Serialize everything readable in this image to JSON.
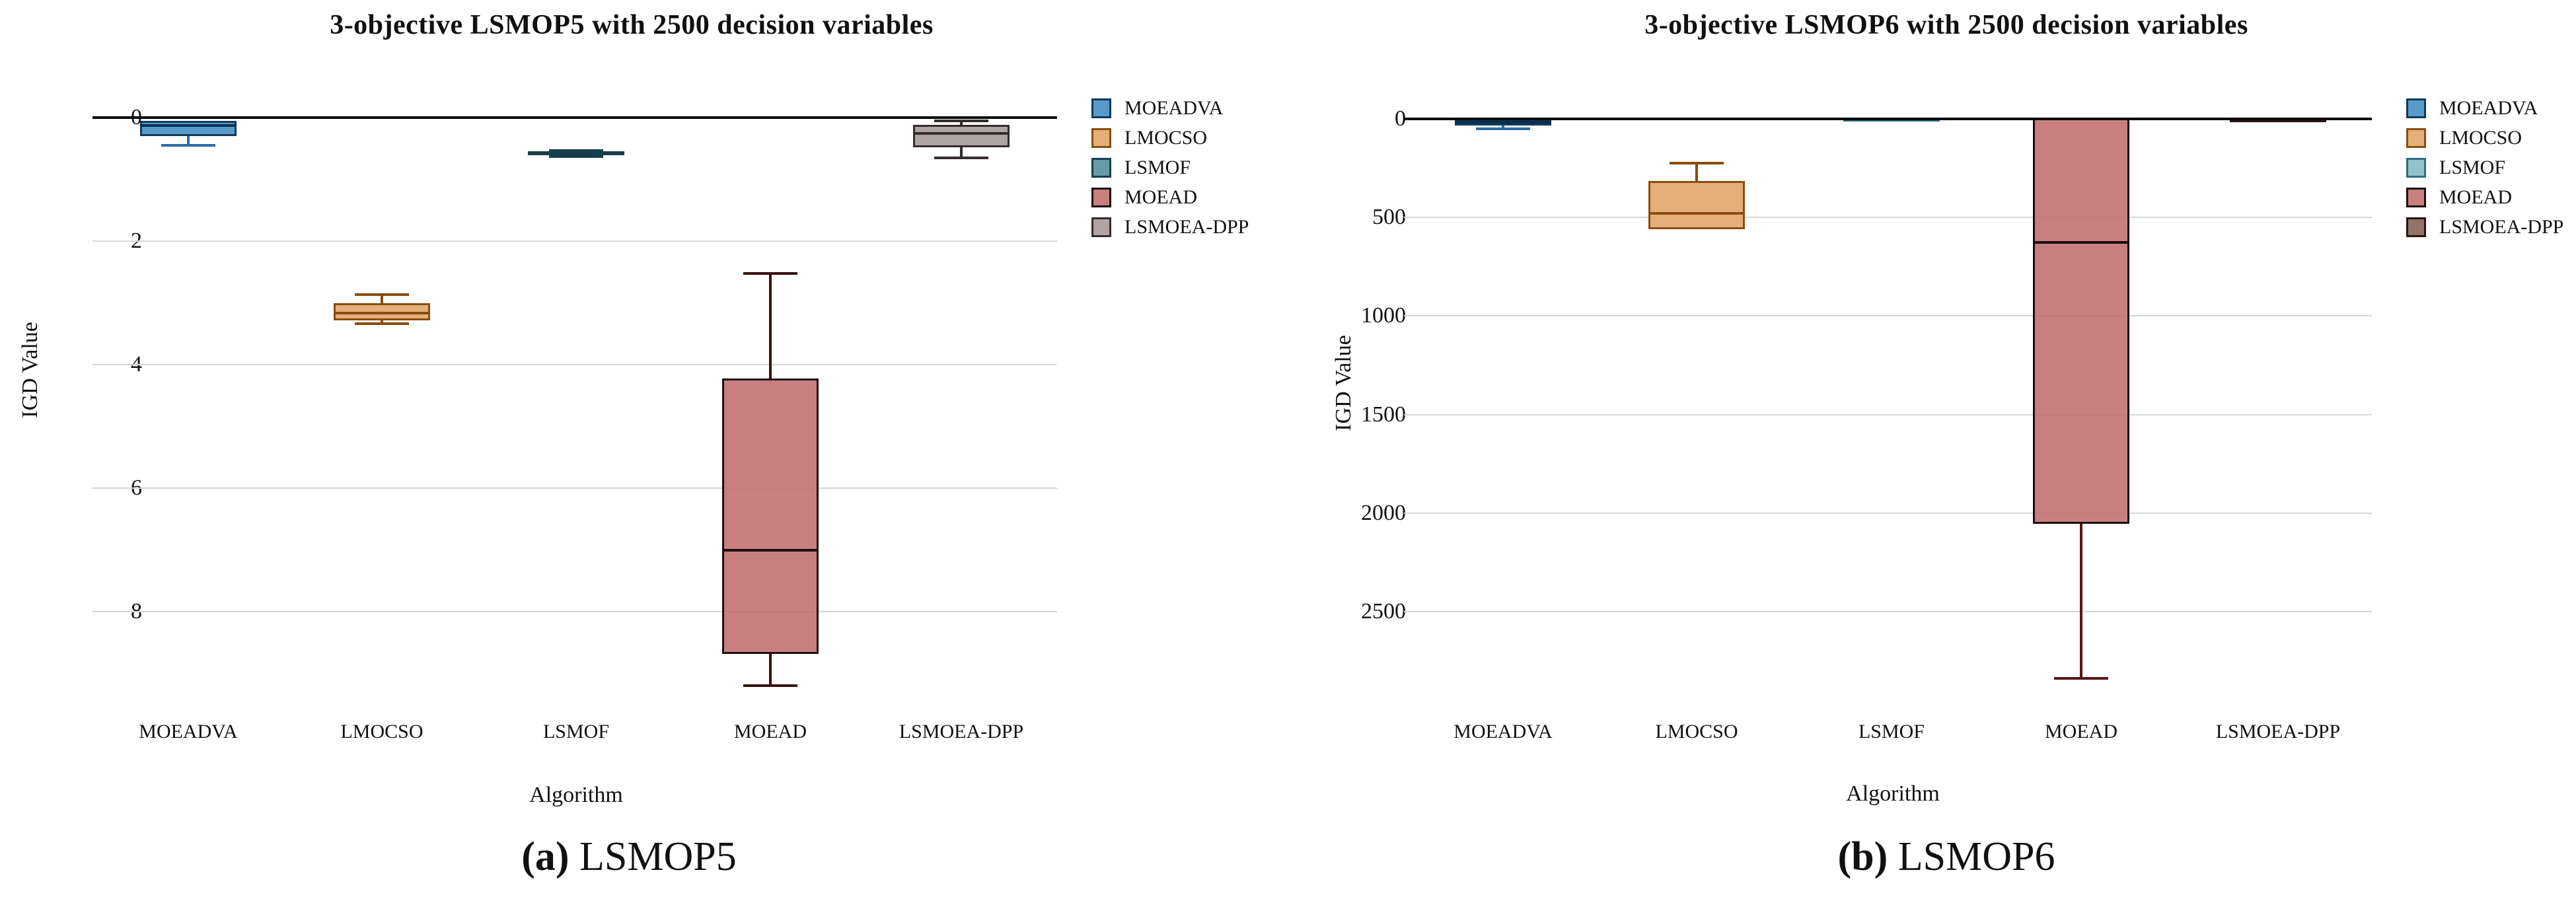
{
  "chart_data": [
    {
      "type": "boxplot",
      "title": "3-objective LSMOP5 with 2500 decision variables",
      "xlabel": "Algorithm",
      "ylabel": "IGD Value",
      "caption": {
        "index": "(a)",
        "label": "LSMOP5"
      },
      "y_axis": {
        "ticks": [
          0,
          2,
          4,
          6,
          8
        ],
        "min": 0,
        "max": 8,
        "values_increase_downward": true,
        "grid": true
      },
      "categories": [
        "MOEADVA",
        "LMOCSO",
        "LSMOF",
        "MOEAD",
        "LSMOEA-DPP"
      ],
      "legend": {
        "position": "right-of-plot",
        "entries": [
          "MOEADVA",
          "LMOCSO",
          "LSMOF",
          "MOEAD",
          "LSMOEA-DPP"
        ]
      },
      "series": [
        {
          "name": "MOEADVA",
          "whisker_high": null,
          "q_top": 0.05,
          "median": 0.13,
          "q_bottom": 0.3,
          "whisker_low": 0.45,
          "fill": "rgba(75,146,195,0.92)",
          "border": "#0f3a5d",
          "whisker": "#2a6ca8",
          "median_color": "#0c2f4d"
        },
        {
          "name": "LMOCSO",
          "whisker_high": 2.87,
          "q_top": 3.01,
          "median": 3.17,
          "q_bottom": 3.28,
          "whisker_low": 3.34,
          "fill": "rgba(227,168,111,0.92)",
          "border": "#8a4d10",
          "whisker": "#8a4d10",
          "median_color": "#8a4d10"
        },
        {
          "name": "LSMOF",
          "whisker_high": 0.53,
          "q_top": 0.55,
          "median": 0.58,
          "q_bottom": 0.61,
          "whisker_low": 0.63,
          "fill": "rgba(94,150,162,0.95)",
          "border": "#163f4c",
          "whisker": "#163f4c",
          "median_color": "#163f4c"
        },
        {
          "name": "MOEAD",
          "whisker_high": 2.52,
          "q_top": 4.22,
          "median": 7.0,
          "q_bottom": 8.68,
          "whisker_low": 9.2,
          "fill": "rgba(193,109,109,0.88)",
          "border": "#1c0d0d",
          "whisker": "#3a1010",
          "median_color": "#1c0d0d"
        },
        {
          "name": "LSMOEA-DPP",
          "whisker_high": 0.05,
          "q_top": 0.12,
          "median": 0.26,
          "q_bottom": 0.48,
          "whisker_low": 0.65,
          "fill": "rgba(168,155,155,0.92)",
          "border": "#352d2d",
          "whisker": "#352d2d",
          "median_color": "#352d2d"
        }
      ]
    },
    {
      "type": "boxplot",
      "title": "3-objective LSMOP6 with 2500 decision variables",
      "xlabel": "Algorithm",
      "ylabel": "IGD Value",
      "caption": {
        "index": "(b)",
        "label": "LSMOP6"
      },
      "y_axis": {
        "ticks": [
          0,
          500,
          1000,
          1500,
          2000,
          2500
        ],
        "min": 0,
        "max": 2500,
        "values_increase_downward": true,
        "grid": true
      },
      "categories": [
        "MOEADVA",
        "LMOCSO",
        "LSMOF",
        "MOEAD",
        "LSMOEA-DPP"
      ],
      "legend": {
        "position": "right-of-plot",
        "entries": [
          "MOEADVA",
          "LMOCSO",
          "LSMOF",
          "MOEAD",
          "LSMOEA-DPP"
        ]
      },
      "series": [
        {
          "name": "MOEADVA",
          "whisker_high": null,
          "q_top": 0,
          "median": 18,
          "q_bottom": 35,
          "whisker_low": 50,
          "fill": "rgba(75,146,195,0.92)",
          "border": "#0f3a5d",
          "whisker": "#2a6ca8",
          "median_color": "#0c2f4d"
        },
        {
          "name": "LMOCSO",
          "whisker_high": 225,
          "q_top": 315,
          "median": 480,
          "q_bottom": 560,
          "whisker_low": null,
          "fill": "rgba(227,168,111,0.92)",
          "border": "#8a4d10",
          "whisker": "#8a4d10",
          "median_color": "#8a4d10"
        },
        {
          "name": "LSMOF",
          "whisker_high": null,
          "q_top": -8,
          "median": 2,
          "q_bottom": 14,
          "whisker_low": null,
          "fill": "rgba(143,192,200,0.95)",
          "border": "#2e6f80",
          "whisker": "#2e6f80",
          "median_color": "#2e6f80"
        },
        {
          "name": "MOEAD",
          "whisker_high": null,
          "q_top": -5,
          "median": 625,
          "q_bottom": 2055,
          "whisker_low": 2840,
          "fill": "rgba(193,109,109,0.88)",
          "border": "#1c0d0d",
          "whisker": "#5a1515",
          "median_color": "#1c0d0d"
        },
        {
          "name": "LSMOEA-DPP",
          "whisker_high": null,
          "q_top": -3,
          "median": 4,
          "q_bottom": 11,
          "whisker_low": null,
          "fill": "rgba(141,106,96,0.95)",
          "border": "#241410",
          "whisker": "#241410",
          "median_color": "#241410"
        }
      ]
    }
  ]
}
